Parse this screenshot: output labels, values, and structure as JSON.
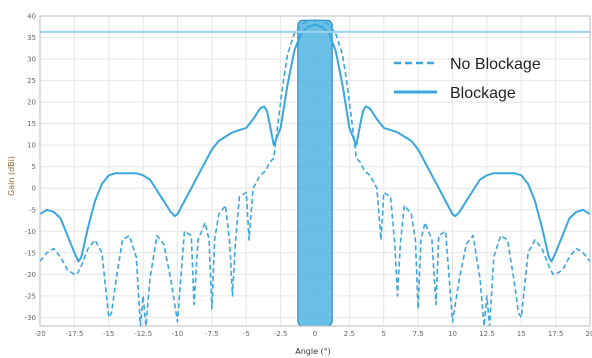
{
  "chart_data": {
    "type": "line",
    "xlabel": "Angle (°)",
    "ylabel": "Gain (dBi)",
    "xlim": [
      -20,
      20
    ],
    "ylim": [
      -32,
      40
    ],
    "xticks": [
      "-20",
      "-17.5",
      "-15",
      "-12.5",
      "-10",
      "-7.5",
      "-5",
      "-2.5",
      "0",
      "2.5",
      "5",
      "7.5",
      "10",
      "12.5",
      "15",
      "17.5",
      "20"
    ],
    "yticks": [
      "40",
      "35",
      "30",
      "25",
      "20",
      "15",
      "10",
      "5",
      "0",
      "-5",
      "-10",
      "-15",
      "-20",
      "-25",
      "-30"
    ],
    "grid": true,
    "legend_position": "top-right",
    "reference_line": {
      "y": 36.3,
      "color": "#9ad3f0"
    },
    "highlight_band": {
      "x_from": -1.25,
      "x_to": 1.25,
      "color": "#4fb4e2"
    },
    "series": [
      {
        "name": "No Blockage",
        "style": "dashed",
        "color": "#3aa6dd",
        "x": [
          -20,
          -19.5,
          -19,
          -18.5,
          -18,
          -17.5,
          -17.3,
          -17,
          -16.5,
          -16,
          -15.5,
          -15,
          -14.8,
          -14.5,
          -14,
          -13.5,
          -13,
          -12.7,
          -12.5,
          -12.3,
          -12,
          -11.5,
          -11,
          -10.5,
          -10,
          -9.5,
          -9,
          -8.8,
          -8.5,
          -8,
          -7.7,
          -7.5,
          -7.3,
          -7,
          -6.5,
          -6.2,
          -6,
          -5.8,
          -5.5,
          -5,
          -4.8,
          -4.5,
          -4,
          -3.6,
          -3.3,
          -3,
          -2.7,
          -2.3,
          -2,
          -1.5,
          -1,
          -0.5,
          0,
          0.5,
          1,
          1.5,
          2,
          2.3,
          2.7,
          3,
          3.3,
          3.6,
          4,
          4.5,
          4.8,
          5,
          5.5,
          5.8,
          6,
          6.2,
          6.5,
          7,
          7.3,
          7.5,
          7.7,
          8,
          8.5,
          8.8,
          9,
          9.5,
          10,
          10.5,
          11,
          11.5,
          12,
          12.3,
          12.5,
          12.7,
          13,
          13.5,
          14,
          14.5,
          14.8,
          15,
          15.5,
          16,
          16.5,
          17,
          17.3,
          17.5,
          18,
          18.5,
          19,
          19.5,
          20
        ],
        "y": [
          -17,
          -15,
          -14,
          -16,
          -19,
          -20,
          -20,
          -18,
          -14,
          -12,
          -15,
          -30,
          -29,
          -22,
          -12,
          -11,
          -16,
          -32,
          -25,
          -32,
          -21,
          -11,
          -13,
          -21,
          -31,
          -10,
          -11,
          -27,
          -12,
          -8,
          -12,
          -28,
          -12,
          -6,
          -4,
          -13,
          -25,
          -13,
          -2,
          -1,
          -12,
          0,
          3,
          4,
          6,
          7,
          15,
          25,
          31,
          36,
          38,
          39,
          39,
          39,
          38,
          36,
          31,
          25,
          15,
          7,
          6,
          4,
          3,
          0,
          -12,
          -1,
          -2,
          -13,
          -25,
          -13,
          -4,
          -6,
          -12,
          -28,
          -12,
          -8,
          -12,
          -27,
          -11,
          -10,
          -31,
          -21,
          -13,
          -11,
          -21,
          -32,
          -25,
          -32,
          -16,
          -11,
          -12,
          -22,
          -29,
          -30,
          -15,
          -12,
          -14,
          -18,
          -20,
          -20,
          -19,
          -16,
          -14,
          -15,
          -17
        ]
      },
      {
        "name": "Blockage",
        "style": "solid",
        "color": "#3aa6dd",
        "x": [
          -20,
          -19.5,
          -19,
          -18.5,
          -18,
          -17.5,
          -17.2,
          -17,
          -16.5,
          -16,
          -15.5,
          -15,
          -14.5,
          -14,
          -13.5,
          -13,
          -12.5,
          -12,
          -11.5,
          -11,
          -10.5,
          -10.2,
          -10,
          -9.5,
          -9,
          -8.5,
          -8,
          -7.5,
          -7,
          -6.5,
          -6,
          -5.5,
          -5,
          -4.5,
          -4,
          -3.7,
          -3.5,
          -3.3,
          -3,
          -2.5,
          -2,
          -1.5,
          -1,
          -0.5,
          0,
          0.5,
          1,
          1.5,
          2,
          2.5,
          3,
          3.3,
          3.5,
          3.7,
          4,
          4.5,
          5,
          5.5,
          6,
          6.5,
          7,
          7.5,
          8,
          8.5,
          9,
          9.5,
          10,
          10.2,
          10.5,
          11,
          11.5,
          12,
          12.5,
          13,
          13.5,
          14,
          14.5,
          15,
          15.5,
          16,
          16.5,
          17,
          17.2,
          17.5,
          18,
          18.5,
          19,
          19.5,
          20
        ],
        "y": [
          -6,
          -5,
          -5.5,
          -7,
          -11,
          -15,
          -17,
          -16,
          -9,
          -3,
          1,
          3,
          3.5,
          3.5,
          3.5,
          3.5,
          3,
          2,
          -0.5,
          -3,
          -5.5,
          -6.5,
          -6,
          -3,
          0,
          3,
          6,
          9,
          11,
          12,
          13,
          13.5,
          14,
          16,
          18.5,
          19,
          18,
          15,
          10,
          14,
          24,
          32,
          36,
          37.5,
          38,
          37.5,
          36,
          32,
          24,
          14,
          10,
          15,
          18,
          19,
          18.5,
          16,
          14,
          13.5,
          13,
          12,
          11,
          9,
          6,
          3,
          0,
          -3,
          -6,
          -6.5,
          -5.5,
          -3,
          -0.5,
          2,
          3,
          3.5,
          3.5,
          3.5,
          3.5,
          3,
          1,
          -3,
          -9,
          -16,
          -17,
          -15,
          -11,
          -7,
          -5.5,
          -5,
          -6
        ]
      }
    ]
  }
}
